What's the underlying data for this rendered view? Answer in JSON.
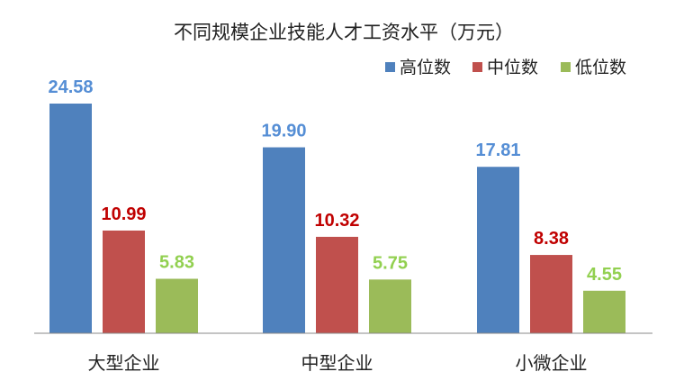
{
  "chart_data": {
    "type": "bar",
    "title": "不同规模企业技能人才工资水平（万元）",
    "xlabel": "",
    "ylabel": "",
    "categories": [
      "大型企业",
      "中型企业",
      "小微企业"
    ],
    "series": [
      {
        "name": "高位数",
        "values": [
          24.58,
          19.9,
          17.81
        ],
        "color": "#4F81BD",
        "label_color": "#558ED5"
      },
      {
        "name": "中位数",
        "values": [
          10.99,
          10.32,
          8.38
        ],
        "color": "#C0504D",
        "label_color": "#C00000"
      },
      {
        "name": "低位数",
        "values": [
          5.83,
          5.75,
          4.55
        ],
        "color": "#9BBB59",
        "label_color": "#92D050"
      }
    ],
    "ylim": [
      0,
      24.58
    ],
    "grid": false,
    "legend_position": "top-right",
    "data_labels": true
  }
}
